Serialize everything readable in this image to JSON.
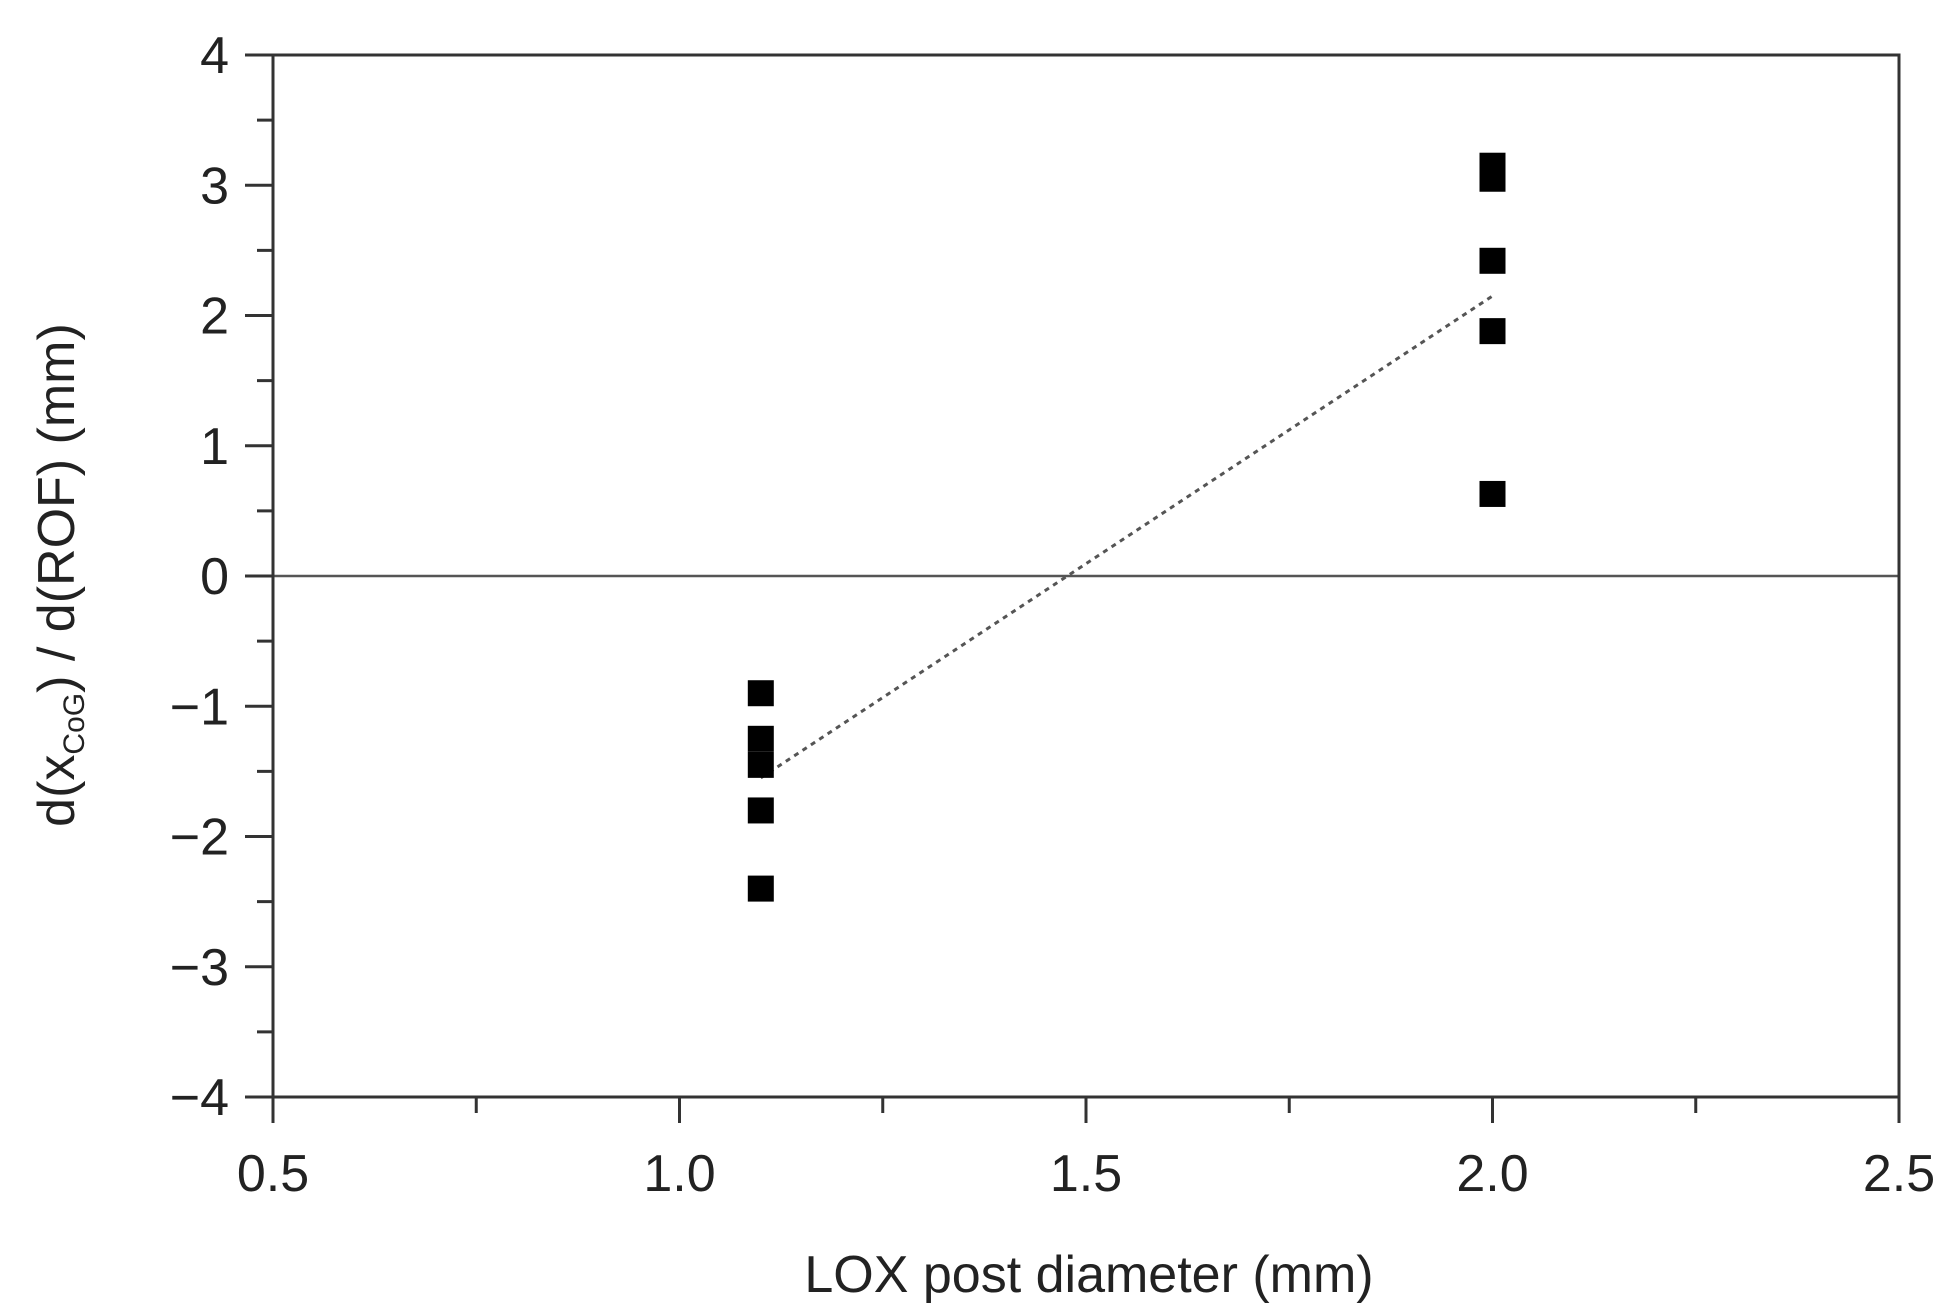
{
  "chart_data": {
    "type": "scatter",
    "xlabel": "LOX post diameter (mm)",
    "ylabel": {
      "prefix": "d(x",
      "subscript": "CoG",
      "suffix": ") / d(ROF) (mm)"
    },
    "xlim": [
      0.5,
      2.5
    ],
    "ylim": [
      -4,
      4
    ],
    "x_ticks": [
      {
        "value": 0.5,
        "label": "0.5"
      },
      {
        "value": 1.0,
        "label": "1.0"
      },
      {
        "value": 1.5,
        "label": "1.5"
      },
      {
        "value": 2.0,
        "label": "2.0"
      },
      {
        "value": 2.5,
        "label": "2.5"
      }
    ],
    "x_minor_ticks": [
      0.75,
      1.25,
      1.75,
      2.25
    ],
    "y_ticks": [
      {
        "value": 4,
        "label": "4"
      },
      {
        "value": 3,
        "label": "3"
      },
      {
        "value": 2,
        "label": "2"
      },
      {
        "value": 1,
        "label": "1"
      },
      {
        "value": 0,
        "label": "0"
      },
      {
        "value": -1,
        "label": "−1"
      },
      {
        "value": -2,
        "label": "−2"
      },
      {
        "value": -3,
        "label": "−3"
      },
      {
        "value": -4,
        "label": "−4"
      }
    ],
    "y_minor_ticks": [
      3.5,
      2.5,
      1.5,
      0.5,
      -0.5,
      -1.5,
      -2.5,
      -3.5
    ],
    "series": [
      {
        "marker": "square",
        "color": "#000000",
        "points": [
          {
            "x": 1.1,
            "y": -0.9
          },
          {
            "x": 1.1,
            "y": -1.25
          },
          {
            "x": 1.1,
            "y": -1.45
          },
          {
            "x": 1.1,
            "y": -1.8
          },
          {
            "x": 1.1,
            "y": -2.4
          },
          {
            "x": 2.0,
            "y": 3.15
          },
          {
            "x": 2.0,
            "y": 3.05
          },
          {
            "x": 2.0,
            "y": 2.42
          },
          {
            "x": 2.0,
            "y": 1.88
          },
          {
            "x": 2.0,
            "y": 0.63
          }
        ]
      }
    ],
    "fit_line": {
      "style": "dotted",
      "color": "#555555",
      "from": {
        "x": 1.1,
        "y": -1.55
      },
      "to": {
        "x": 2.0,
        "y": 2.15
      }
    },
    "zero_line": {
      "y": 0,
      "color": "#555555"
    },
    "grid": false
  }
}
